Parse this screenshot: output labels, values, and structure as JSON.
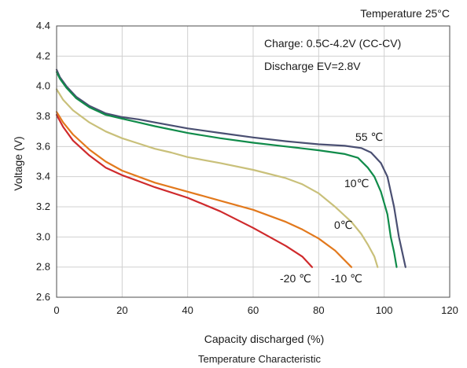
{
  "chart_data": {
    "type": "line",
    "title": "Temperature Characteristic",
    "temperature_note": "Temperature 25°C",
    "annotations": [
      "Charge: 0.5C-4.2V (CC-CV)",
      "Discharge EV=2.8V"
    ],
    "xlabel": "Capacity discharged (%)",
    "ylabel": "Voltage (V)",
    "xlim": [
      0,
      120
    ],
    "ylim": [
      2.6,
      4.4
    ],
    "x_ticks": [
      "0",
      "20",
      "40",
      "60",
      "80",
      "100",
      "120"
    ],
    "y_ticks": [
      "2.6",
      "2.8",
      "3.0",
      "3.2",
      "3.4",
      "3.6",
      "3.8",
      "4.0",
      "4.2",
      "4.4"
    ],
    "grid": true,
    "series": [
      {
        "name": "55 ℃",
        "color": "#4a4f72",
        "points": [
          [
            0,
            4.11
          ],
          [
            1,
            4.06
          ],
          [
            3,
            4.0
          ],
          [
            6,
            3.93
          ],
          [
            10,
            3.87
          ],
          [
            15,
            3.82
          ],
          [
            20,
            3.795
          ],
          [
            25,
            3.78
          ],
          [
            30,
            3.76
          ],
          [
            40,
            3.72
          ],
          [
            50,
            3.69
          ],
          [
            60,
            3.66
          ],
          [
            70,
            3.635
          ],
          [
            80,
            3.615
          ],
          [
            88,
            3.605
          ],
          [
            93,
            3.59
          ],
          [
            96,
            3.56
          ],
          [
            99,
            3.49
          ],
          [
            101,
            3.4
          ],
          [
            103,
            3.2
          ],
          [
            104.5,
            3.0
          ],
          [
            105.5,
            2.9
          ],
          [
            106.5,
            2.8
          ]
        ]
      },
      {
        "name": "10℃",
        "color": "#108b4a",
        "points": [
          [
            0,
            4.095
          ],
          [
            1,
            4.05
          ],
          [
            3,
            3.99
          ],
          [
            6,
            3.92
          ],
          [
            10,
            3.86
          ],
          [
            15,
            3.81
          ],
          [
            20,
            3.785
          ],
          [
            25,
            3.76
          ],
          [
            30,
            3.735
          ],
          [
            40,
            3.69
          ],
          [
            50,
            3.655
          ],
          [
            60,
            3.625
          ],
          [
            70,
            3.6
          ],
          [
            80,
            3.575
          ],
          [
            88,
            3.55
          ],
          [
            92,
            3.525
          ],
          [
            95,
            3.46
          ],
          [
            97,
            3.4
          ],
          [
            99,
            3.3
          ],
          [
            101,
            3.15
          ],
          [
            102,
            3.0
          ],
          [
            103,
            2.9
          ],
          [
            103.8,
            2.8
          ]
        ]
      },
      {
        "name": "0℃",
        "color": "#c9c07a",
        "points": [
          [
            0,
            3.98
          ],
          [
            2,
            3.91
          ],
          [
            5,
            3.84
          ],
          [
            10,
            3.76
          ],
          [
            15,
            3.7
          ],
          [
            20,
            3.655
          ],
          [
            25,
            3.62
          ],
          [
            30,
            3.585
          ],
          [
            35,
            3.56
          ],
          [
            40,
            3.53
          ],
          [
            50,
            3.49
          ],
          [
            60,
            3.445
          ],
          [
            70,
            3.39
          ],
          [
            75,
            3.35
          ],
          [
            80,
            3.29
          ],
          [
            85,
            3.2
          ],
          [
            90,
            3.1
          ],
          [
            93,
            3.02
          ],
          [
            95,
            2.95
          ],
          [
            97,
            2.87
          ],
          [
            98,
            2.8
          ]
        ]
      },
      {
        "name": "-10 ℃",
        "color": "#e2791d",
        "points": [
          [
            0,
            3.83
          ],
          [
            2,
            3.76
          ],
          [
            5,
            3.68
          ],
          [
            10,
            3.58
          ],
          [
            15,
            3.5
          ],
          [
            20,
            3.44
          ],
          [
            25,
            3.4
          ],
          [
            30,
            3.36
          ],
          [
            40,
            3.3
          ],
          [
            50,
            3.24
          ],
          [
            60,
            3.18
          ],
          [
            70,
            3.1
          ],
          [
            75,
            3.05
          ],
          [
            80,
            2.99
          ],
          [
            85,
            2.91
          ],
          [
            90,
            2.8
          ]
        ]
      },
      {
        "name": "-20 ℃",
        "color": "#cf2a2c",
        "points": [
          [
            0,
            3.81
          ],
          [
            2,
            3.73
          ],
          [
            5,
            3.64
          ],
          [
            10,
            3.54
          ],
          [
            15,
            3.46
          ],
          [
            20,
            3.41
          ],
          [
            25,
            3.37
          ],
          [
            30,
            3.33
          ],
          [
            40,
            3.26
          ],
          [
            50,
            3.17
          ],
          [
            60,
            3.06
          ],
          [
            70,
            2.94
          ],
          [
            75,
            2.87
          ],
          [
            78,
            2.8
          ]
        ]
      }
    ]
  }
}
